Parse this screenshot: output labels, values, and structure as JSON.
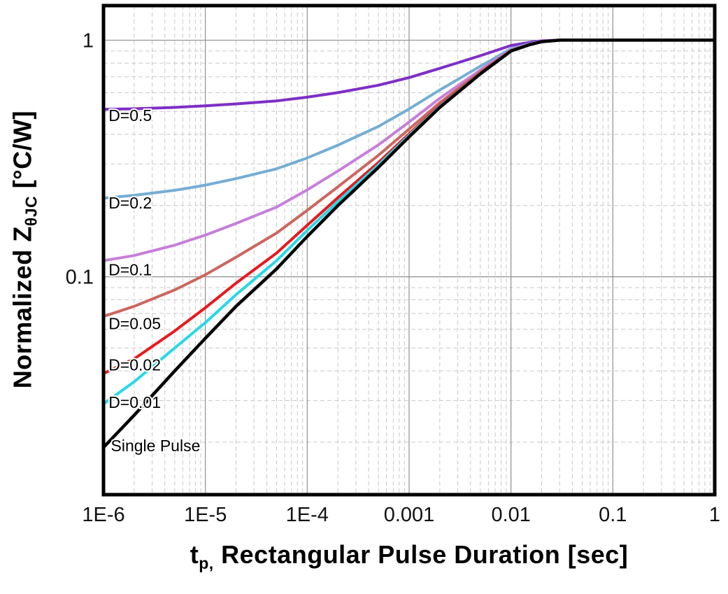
{
  "chart_data": {
    "type": "line",
    "title": "",
    "x_scale": "log",
    "y_scale": "log",
    "xlim": [
      1e-06,
      1
    ],
    "ylim": [
      0.012,
      1.4
    ],
    "xlabel_parts": {
      "pre": "t",
      "sub": "p,",
      "post": " Rectangular Pulse Duration [sec]"
    },
    "ylabel_parts": {
      "pre": "Normalized Z",
      "sub": "θJC",
      "post": " [°C/W]"
    },
    "x_ticks": [
      {
        "value": 1e-06,
        "label": "1E-6"
      },
      {
        "value": 1e-05,
        "label": "1E-5"
      },
      {
        "value": 0.0001,
        "label": "1E-4"
      },
      {
        "value": 0.001,
        "label": "0.001"
      },
      {
        "value": 0.01,
        "label": "0.01"
      },
      {
        "value": 0.1,
        "label": "0.1"
      },
      {
        "value": 1,
        "label": "1"
      }
    ],
    "y_ticks": [
      {
        "value": 1,
        "label": "1"
      },
      {
        "value": 0.1,
        "label": "0.1"
      }
    ],
    "grid": {
      "major": true,
      "minor": true,
      "major_color": "#8f8f8f",
      "minor_color": "#c9c9c9"
    },
    "x": [
      1e-06,
      2e-06,
      5e-06,
      1e-05,
      2e-05,
      5e-05,
      0.0001,
      0.0002,
      0.0005,
      0.001,
      0.002,
      0.005,
      0.01,
      0.015,
      0.02,
      0.03,
      0.05,
      0.1,
      0.3,
      1
    ],
    "series": [
      {
        "name": "D=0.5",
        "color": "#7d2fc6",
        "width": 4,
        "values": [
          0.51,
          0.513,
          0.52,
          0.528,
          0.538,
          0.554,
          0.574,
          0.6,
          0.645,
          0.695,
          0.76,
          0.86,
          0.95,
          0.978,
          0.993,
          1,
          1,
          1,
          1,
          1
        ]
      },
      {
        "name": "D=0.2",
        "color": "#74aed4",
        "width": 4,
        "values": [
          0.215,
          0.221,
          0.232,
          0.244,
          0.26,
          0.286,
          0.318,
          0.36,
          0.432,
          0.512,
          0.616,
          0.776,
          0.92,
          0.964,
          0.988,
          1,
          1,
          1,
          1,
          1
        ]
      },
      {
        "name": "D=0.1",
        "color": "#c77fdb",
        "width": 4,
        "values": [
          0.117,
          0.123,
          0.136,
          0.15,
          0.168,
          0.197,
          0.233,
          0.28,
          0.361,
          0.451,
          0.568,
          0.748,
          0.91,
          0.96,
          0.987,
          1,
          1,
          1,
          1,
          1
        ]
      },
      {
        "name": "D=0.05",
        "color": "#cd6660",
        "width": 4,
        "values": [
          0.068,
          0.075,
          0.088,
          0.102,
          0.121,
          0.153,
          0.191,
          0.24,
          0.326,
          0.421,
          0.544,
          0.734,
          0.905,
          0.957,
          0.986,
          1,
          1,
          1,
          1,
          1
        ]
      },
      {
        "name": "D=0.02",
        "color": "#e8191c",
        "width": 4,
        "values": [
          0.039,
          0.045,
          0.059,
          0.074,
          0.094,
          0.126,
          0.165,
          0.216,
          0.304,
          0.402,
          0.53,
          0.726,
          0.902,
          0.956,
          0.985,
          1,
          1,
          1,
          1,
          1
        ]
      },
      {
        "name": "D=0.01",
        "color": "#27d8e8",
        "width": 4,
        "values": [
          0.029,
          0.036,
          0.05,
          0.064,
          0.084,
          0.117,
          0.157,
          0.208,
          0.297,
          0.396,
          0.525,
          0.723,
          0.901,
          0.955,
          0.985,
          1,
          1,
          1,
          1,
          1
        ]
      },
      {
        "name": "Single Pulse",
        "color": "#000000",
        "width": 4.5,
        "values": [
          0.019,
          0.026,
          0.04,
          0.055,
          0.075,
          0.108,
          0.148,
          0.2,
          0.29,
          0.39,
          0.52,
          0.72,
          0.9,
          0.955,
          0.985,
          1,
          1,
          1,
          1,
          1
        ]
      }
    ],
    "annotations": [
      {
        "text": "D=0.5",
        "x": 1.12e-06,
        "y": 0.48
      },
      {
        "text": "D=0.2",
        "x": 1.12e-06,
        "y": 0.205
      },
      {
        "text": "D=0.1",
        "x": 1.12e-06,
        "y": 0.107
      },
      {
        "text": "D=0.05",
        "x": 1.12e-06,
        "y": 0.0635
      },
      {
        "text": "D=0.02",
        "x": 1.12e-06,
        "y": 0.0425
      },
      {
        "text": "D=0.01",
        "x": 1.12e-06,
        "y": 0.0295
      },
      {
        "text": "Single Pulse",
        "x": 1.18e-06,
        "y": 0.0193
      }
    ]
  }
}
